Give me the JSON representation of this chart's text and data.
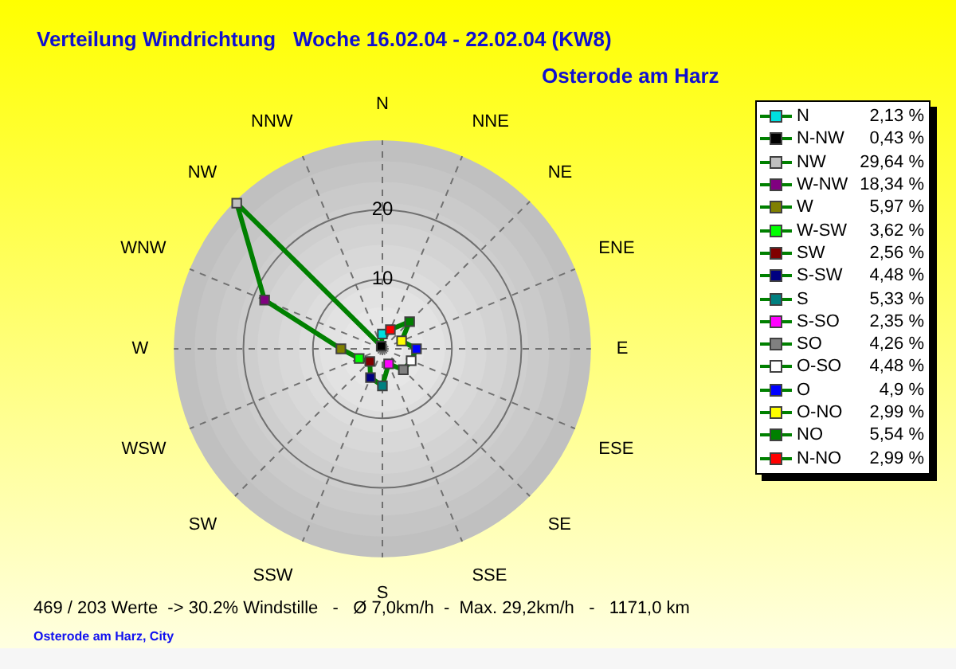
{
  "chart_data": {
    "type": "radar",
    "title": "Verteilung Windrichtung   Woche 16.02.04 - 22.02.04 (KW8)",
    "subtitle": "Osterode am Harz",
    "categories": [
      "N",
      "NNE",
      "NE",
      "ENE",
      "E",
      "ESE",
      "SE",
      "SSE",
      "S",
      "SSW",
      "SW",
      "WSW",
      "W",
      "WNW",
      "NW",
      "NNW"
    ],
    "ylim": [
      0,
      30
    ],
    "yticks": [
      10,
      20
    ],
    "grid": true,
    "marker": "square",
    "series": [
      {
        "color": "#008000",
        "values": [
          2.13,
          2.99,
          5.54,
          2.99,
          4.9,
          4.48,
          4.26,
          2.35,
          5.33,
          4.48,
          2.56,
          3.62,
          5.97,
          18.34,
          29.64,
          0.43
        ],
        "colors": [
          "#00e0e0",
          "#ff0000",
          "#008000",
          "#ffff00",
          "#0000ff",
          "#ffffff",
          "#808080",
          "#ff00ff",
          "#008080",
          "#000080",
          "#800000",
          "#00ff00",
          "#808000",
          "#800080",
          "#c0c0c0",
          "#000000"
        ]
      }
    ],
    "annotations": [
      {
        "text": "N",
        "x": "N"
      },
      {
        "text": "2,13 %",
        "x": "N"
      },
      {
        "text": "N-NW",
        "x": "NNW"
      },
      {
        "text": "0,43 %",
        "x": "NNW"
      },
      {
        "text": "NW",
        "x": "NW"
      },
      {
        "text": "29,64 %",
        "x": "NW"
      },
      {
        "text": "W-NW",
        "x": "WNW"
      },
      {
        "text": "18,34 %",
        "x": "WNW"
      },
      {
        "text": "W",
        "x": "W"
      },
      {
        "text": "5,97 %",
        "x": "W"
      },
      {
        "text": "W-SW",
        "x": "WSW"
      },
      {
        "text": "3,62 %",
        "x": "WSW"
      },
      {
        "text": "SW",
        "x": "SW"
      },
      {
        "text": "2,56 %",
        "x": "SW"
      },
      {
        "text": "S-SW",
        "x": "SSW"
      },
      {
        "text": "4,48 %",
        "x": "SSW"
      },
      {
        "text": "S",
        "x": "S"
      },
      {
        "text": "5,33 %",
        "x": "S"
      },
      {
        "text": "S-SO",
        "x": "SSE"
      },
      {
        "text": "2,35 %",
        "x": "SSE"
      },
      {
        "text": "SO",
        "x": "SE"
      },
      {
        "text": "4,26 %",
        "x": "SE"
      },
      {
        "text": "O-SO",
        "x": "ESE"
      },
      {
        "text": "4,48 %",
        "x": "ESE"
      },
      {
        "text": "O",
        "x": "E"
      },
      {
        "text": "4,9 %",
        "x": "E"
      },
      {
        "text": "O-NO",
        "x": "ENE"
      },
      {
        "text": "2,99 %",
        "x": "ENE"
      },
      {
        "text": "NO",
        "x": "NE"
      },
      {
        "text": "5,54 %",
        "x": "NE"
      },
      {
        "text": "N-NO",
        "x": "NNE"
      },
      {
        "text": "2,99 %",
        "x": "NNE"
      },
      "469 / 203 Werte  -> 30.2% Windstille   -   Ø 7,0km/h  -  Max. 29,2km/h   -   1171,0 km",
      "Osterode am Harz, City"
    ]
  }
}
